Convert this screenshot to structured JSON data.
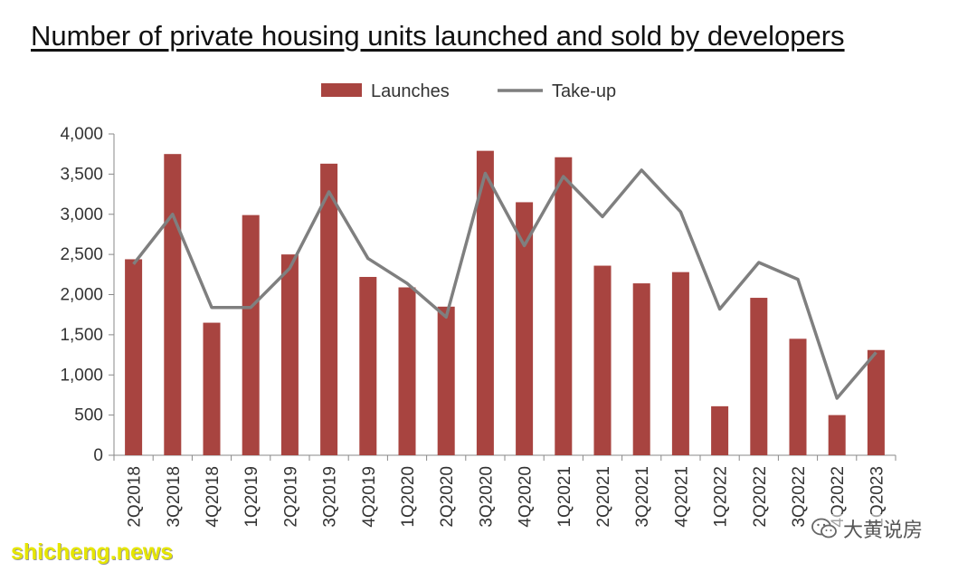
{
  "title": "Number of private housing units launched and sold by developers",
  "watermarks": {
    "site": "shicheng.news",
    "account": "大黄说房"
  },
  "icons": {
    "account_icon": "wechat-icon"
  },
  "colors": {
    "launches": "#a84440",
    "takeup": "#7f7f7f",
    "watermark_site": "#e6e600"
  },
  "chart_data": {
    "type": "bar",
    "categories": [
      "2Q2018",
      "3Q2018",
      "4Q2018",
      "1Q2019",
      "2Q2019",
      "3Q2019",
      "4Q2019",
      "1Q2020",
      "2Q2020",
      "3Q2020",
      "4Q2020",
      "1Q2021",
      "2Q2021",
      "3Q2021",
      "4Q2021",
      "1Q2022",
      "2Q2022",
      "3Q2022",
      "4Q2022",
      "1Q2023"
    ],
    "series": [
      {
        "name": "Launches",
        "type": "bar",
        "values": [
          2440,
          3750,
          1650,
          2990,
          2500,
          3630,
          2220,
          2090,
          1850,
          3790,
          3150,
          3710,
          2360,
          2140,
          2280,
          610,
          1960,
          1450,
          500,
          1310
        ]
      },
      {
        "name": "Take-up",
        "type": "line",
        "values": [
          2380,
          3000,
          1840,
          1840,
          2330,
          3280,
          2450,
          2140,
          1720,
          3510,
          2610,
          3470,
          2970,
          3550,
          3030,
          1820,
          2400,
          2190,
          710,
          1280
        ]
      }
    ],
    "ylim": [
      0,
      4000
    ],
    "yticks": [
      "0",
      "500",
      "1,000",
      "1,500",
      "2,000",
      "2,500",
      "3,000",
      "3,500",
      "4,000"
    ],
    "grid": false,
    "legend_position": "top-center",
    "xlabel": "",
    "ylabel": ""
  }
}
